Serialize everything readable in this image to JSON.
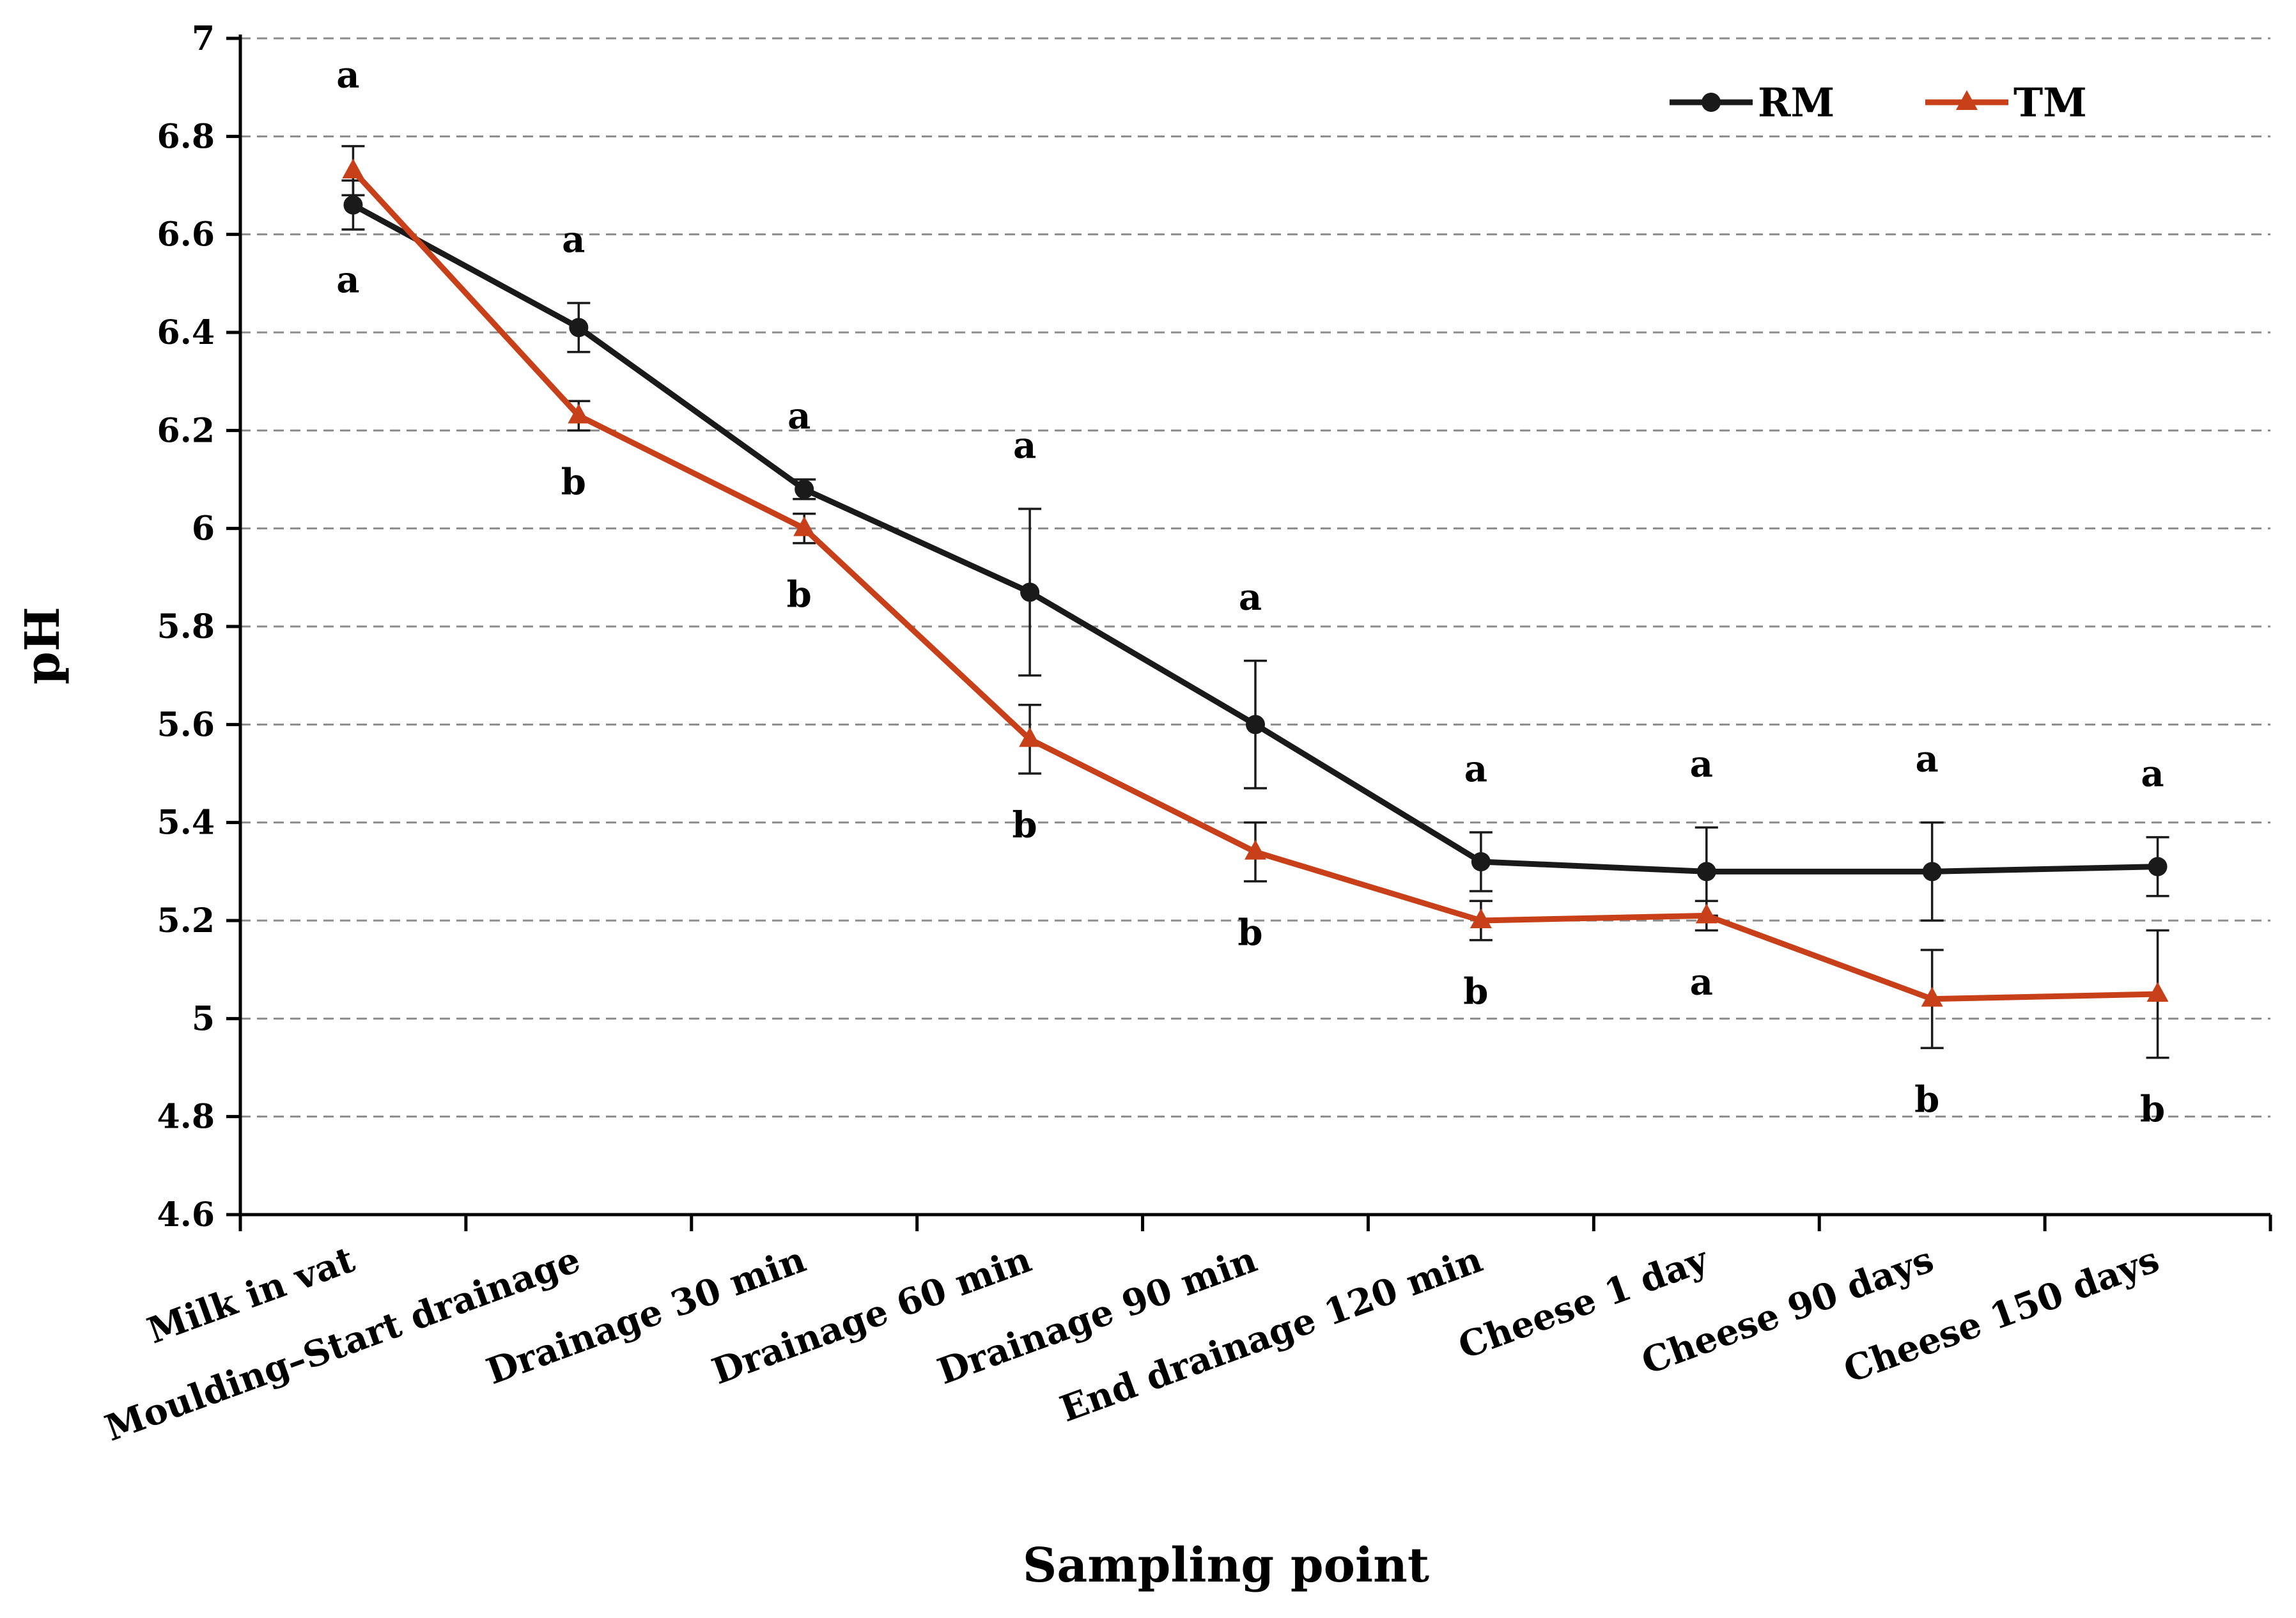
{
  "chart_data": {
    "type": "line",
    "title": "",
    "xlabel": "Sampling point",
    "ylabel": "pH",
    "ylim": [
      4.6,
      7
    ],
    "yticks": [
      "4.6",
      "4.8",
      "5",
      "5.2",
      "5.4",
      "5.6",
      "5.8",
      "6",
      "6.2",
      "6.4",
      "6.6",
      "6.8",
      "7"
    ],
    "grid": "horizontal dashed",
    "legend_position": "top-right",
    "categories": [
      "Milk in vat",
      "Moulding–Start drainage",
      "Drainage 30 min",
      "Drainage 60 min",
      "Drainage 90 min",
      "End drainage 120 min",
      "Cheese 1 day",
      "Cheese 90 days",
      "Cheese 150 days"
    ],
    "series": [
      {
        "name": "RM",
        "color": "#1a1a1a",
        "marker": "circle",
        "values": [
          6.66,
          6.41,
          6.08,
          5.87,
          5.6,
          5.32,
          5.3,
          5.3,
          5.31
        ],
        "errors": [
          0.05,
          0.05,
          0.02,
          0.17,
          0.13,
          0.06,
          0.09,
          0.1,
          0.06
        ],
        "significance": [
          "a",
          "a",
          "a",
          "a",
          "a",
          "a",
          "a",
          "a",
          "a"
        ]
      },
      {
        "name": "TM",
        "color": "#c8401a",
        "marker": "triangle",
        "values": [
          6.73,
          6.23,
          6.0,
          5.57,
          5.34,
          5.2,
          5.21,
          5.04,
          5.05
        ],
        "errors": [
          0.05,
          0.03,
          0.03,
          0.07,
          0.06,
          0.04,
          0.03,
          0.1,
          0.13
        ],
        "significance": [
          "a",
          "b",
          "b",
          "b",
          "b",
          "b",
          "a",
          "b",
          "b"
        ]
      }
    ]
  }
}
